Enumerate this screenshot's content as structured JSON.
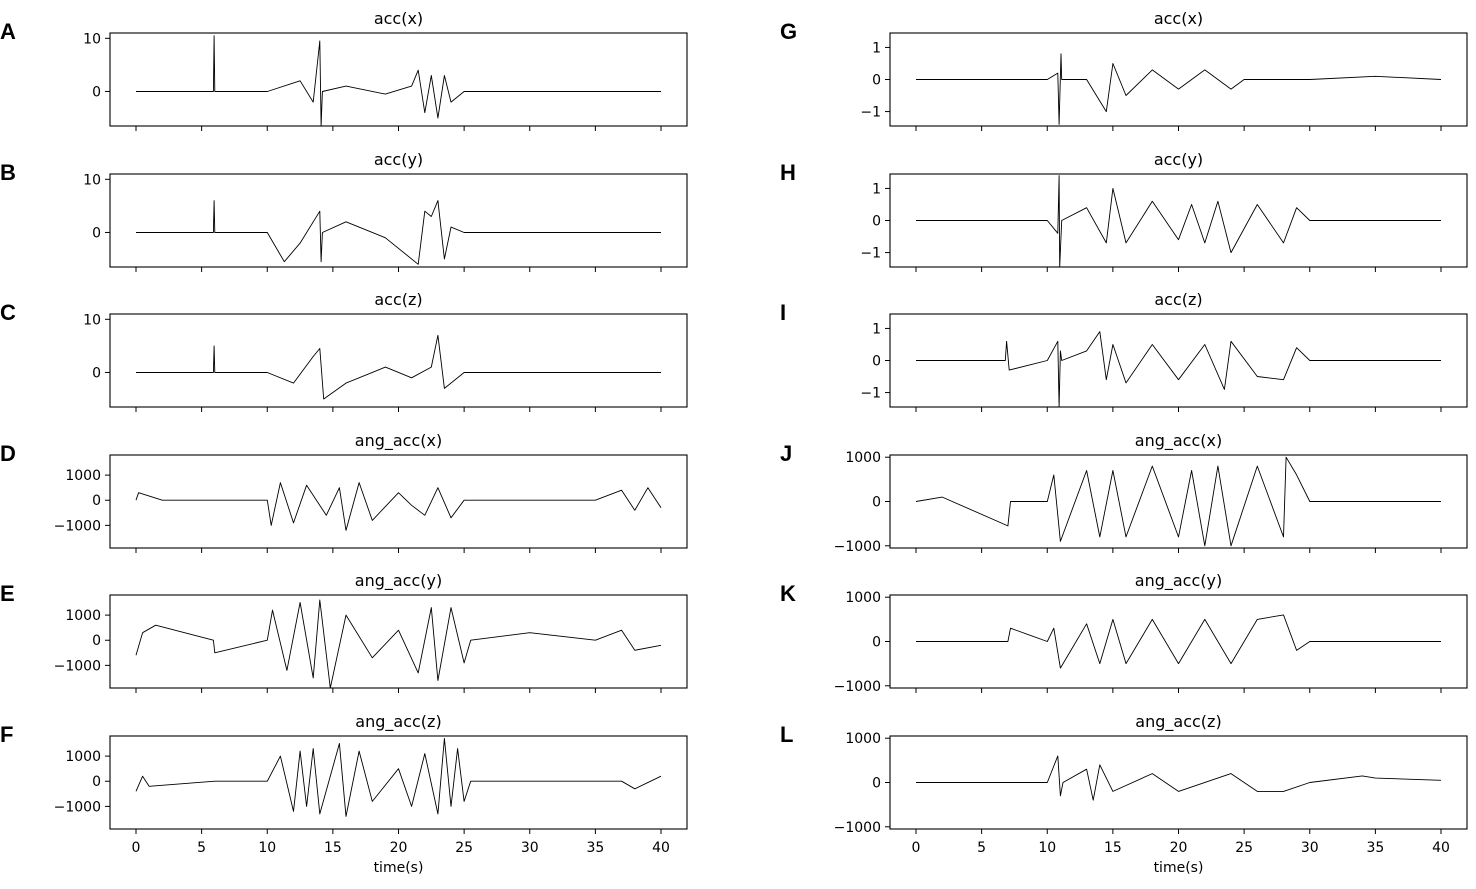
{
  "chart_data": [
    {
      "id": "A",
      "column": "left",
      "type": "line",
      "title": "acc(x)",
      "xlabel": "",
      "ylabel": "",
      "xlim": [
        0,
        40
      ],
      "ylim": [
        -6.5,
        11
      ],
      "yticks": [
        0,
        10
      ],
      "xticks": [],
      "series": [
        {
          "x": [
            0,
            5.9,
            5.95,
            6.0,
            6.05,
            10,
            12.5,
            13.5,
            14.0,
            14.1,
            14.2,
            16,
            19,
            21,
            21.5,
            22,
            22.5,
            23,
            23.5,
            24,
            25,
            25.5,
            30,
            35,
            40
          ],
          "y": [
            0,
            0,
            10.5,
            0,
            0,
            0,
            2,
            -2,
            9.5,
            -6.5,
            0,
            1,
            -0.5,
            1,
            4,
            -4,
            3,
            -5,
            3,
            -2,
            0,
            0,
            0,
            0,
            0
          ]
        }
      ]
    },
    {
      "id": "B",
      "column": "left",
      "type": "line",
      "title": "acc(y)",
      "xlabel": "",
      "ylabel": "",
      "xlim": [
        0,
        40
      ],
      "ylim": [
        -6.5,
        11
      ],
      "yticks": [
        0,
        10
      ],
      "xticks": [],
      "series": [
        {
          "x": [
            0,
            5.9,
            5.95,
            6.0,
            6.05,
            10,
            11.3,
            12.5,
            14.0,
            14.1,
            14.2,
            16,
            19,
            21.5,
            22,
            22.5,
            23,
            23.5,
            24,
            25,
            25.5,
            30,
            35,
            40
          ],
          "y": [
            0,
            0,
            6,
            0,
            0,
            0,
            -5.5,
            -2,
            4,
            -5.5,
            0,
            2,
            -1,
            -6,
            4,
            3,
            6,
            -5,
            1,
            0,
            0,
            0,
            0,
            0
          ]
        }
      ]
    },
    {
      "id": "C",
      "column": "left",
      "type": "line",
      "title": "acc(z)",
      "xlabel": "",
      "ylabel": "",
      "xlim": [
        0,
        40
      ],
      "ylim": [
        -6.5,
        11
      ],
      "yticks": [
        0,
        10
      ],
      "xticks": [],
      "series": [
        {
          "x": [
            0,
            5.9,
            5.95,
            6.0,
            6.05,
            10,
            12,
            13.5,
            14.0,
            14.3,
            16,
            19,
            21,
            22.5,
            23,
            23.5,
            25,
            25.5,
            30,
            35,
            40
          ],
          "y": [
            0,
            0,
            5,
            0,
            0,
            0,
            -2,
            3,
            4.5,
            -5,
            -2,
            1,
            -1,
            1,
            7,
            -3,
            0,
            0,
            0,
            0,
            0
          ]
        }
      ]
    },
    {
      "id": "D",
      "column": "left",
      "type": "line",
      "title": "ang_acc(x)",
      "xlabel": "",
      "ylabel": "",
      "xlim": [
        0,
        40
      ],
      "ylim": [
        -1900,
        1800
      ],
      "yticks": [
        -1000,
        0,
        1000
      ],
      "xticks": [],
      "series": [
        {
          "x": [
            0,
            0.2,
            2,
            10,
            10.3,
            11,
            12,
            13,
            14.5,
            15.5,
            16,
            17,
            18,
            20,
            21,
            22,
            23,
            24,
            25,
            25.5,
            30,
            35,
            37,
            38,
            39,
            40
          ],
          "y": [
            0,
            300,
            0,
            0,
            -1000,
            700,
            -900,
            600,
            -600,
            500,
            -1200,
            700,
            -800,
            300,
            -200,
            -600,
            500,
            -700,
            0,
            0,
            0,
            0,
            400,
            -400,
            500,
            -300
          ]
        }
      ]
    },
    {
      "id": "E",
      "column": "left",
      "type": "line",
      "title": "ang_acc(y)",
      "xlabel": "",
      "ylabel": "",
      "xlim": [
        0,
        40
      ],
      "ylim": [
        -1900,
        1800
      ],
      "yticks": [
        -1000,
        0,
        1000
      ],
      "xticks": [],
      "series": [
        {
          "x": [
            0,
            0.5,
            1.5,
            5.9,
            6.0,
            10,
            10.4,
            11.5,
            12.5,
            13.5,
            14,
            14.8,
            16,
            18,
            20,
            21.5,
            22.5,
            23,
            24,
            25,
            25.5,
            30,
            35,
            37,
            38,
            40
          ],
          "y": [
            -600,
            300,
            600,
            0,
            -500,
            0,
            1200,
            -1200,
            1500,
            -1500,
            1600,
            -1900,
            1000,
            -700,
            400,
            -1300,
            1300,
            -1600,
            1300,
            -900,
            0,
            300,
            0,
            400,
            -400,
            -200
          ]
        }
      ]
    },
    {
      "id": "F",
      "column": "left",
      "type": "line",
      "title": "ang_acc(z)",
      "xlabel": "",
      "ylabel": "",
      "xlim": [
        0,
        40
      ],
      "ylim": [
        -1900,
        1800
      ],
      "yticks": [
        -1000,
        0,
        1000
      ],
      "xticks": [
        0,
        5,
        10,
        15,
        20,
        25,
        30,
        35,
        40
      ],
      "series": [
        {
          "x": [
            0,
            0.5,
            1,
            6,
            10,
            11,
            12,
            12.5,
            13,
            13.5,
            14,
            15.5,
            16,
            17,
            18,
            20,
            21,
            22,
            23,
            23.5,
            24,
            24.5,
            25,
            25.5,
            30,
            35,
            37,
            38,
            40
          ],
          "y": [
            -400,
            200,
            -200,
            0,
            0,
            1000,
            -1200,
            1200,
            -1000,
            1300,
            -1300,
            1500,
            -1400,
            1200,
            -800,
            500,
            -1000,
            1100,
            -1300,
            1700,
            -1000,
            1300,
            -800,
            0,
            0,
            0,
            0,
            -300,
            200
          ]
        }
      ]
    },
    {
      "id": "G",
      "column": "right",
      "type": "line",
      "title": "acc(x)",
      "xlabel": "",
      "ylabel": "",
      "xlim": [
        0,
        40
      ],
      "ylim": [
        -1.45,
        1.45
      ],
      "yticks": [
        -1,
        0,
        1
      ],
      "xticks": [],
      "series": [
        {
          "x": [
            0,
            6.9,
            7,
            10,
            10.8,
            10.9,
            11.05,
            11.1,
            13,
            14.5,
            15,
            16,
            18,
            20,
            22,
            24,
            25,
            30,
            35,
            40
          ],
          "y": [
            0,
            0,
            0,
            0,
            0.2,
            -1.4,
            0.8,
            0,
            0,
            -1,
            0.5,
            -0.5,
            0.3,
            -0.3,
            0.3,
            -0.3,
            0,
            0,
            0.1,
            0
          ]
        }
      ]
    },
    {
      "id": "H",
      "column": "right",
      "type": "line",
      "title": "acc(y)",
      "xlabel": "",
      "ylabel": "",
      "xlim": [
        0,
        40
      ],
      "ylim": [
        -1.45,
        1.45
      ],
      "yticks": [
        -1,
        0,
        1
      ],
      "xticks": [],
      "series": [
        {
          "x": [
            0,
            6,
            10,
            10.8,
            10.9,
            10.95,
            11.1,
            13,
            14.5,
            15,
            16,
            18,
            20,
            21,
            22,
            23,
            24,
            26,
            28,
            29,
            30,
            35,
            40
          ],
          "y": [
            0,
            0,
            0,
            -0.4,
            1.4,
            -1.45,
            0,
            0.4,
            -0.7,
            1,
            -0.7,
            0.6,
            -0.6,
            0.5,
            -0.7,
            0.6,
            -1,
            0.5,
            -0.7,
            0.4,
            0,
            0,
            0
          ]
        }
      ]
    },
    {
      "id": "I",
      "column": "right",
      "type": "line",
      "title": "acc(z)",
      "xlabel": "",
      "ylabel": "",
      "xlim": [
        0,
        40
      ],
      "ylim": [
        -1.45,
        1.45
      ],
      "yticks": [
        -1,
        0,
        1
      ],
      "xticks": [],
      "series": [
        {
          "x": [
            0,
            6.8,
            6.9,
            7.1,
            10,
            10.8,
            10.9,
            11.0,
            11.1,
            13,
            14,
            14.5,
            15,
            16,
            18,
            20,
            22,
            23.5,
            24,
            26,
            28,
            29,
            30,
            35,
            40
          ],
          "y": [
            0,
            0,
            0.6,
            -0.3,
            0,
            0.6,
            -1.45,
            0.3,
            0,
            0.3,
            0.9,
            -0.6,
            0.5,
            -0.7,
            0.5,
            -0.6,
            0.5,
            -0.9,
            0.6,
            -0.5,
            -0.6,
            0.4,
            0,
            0,
            0
          ]
        }
      ]
    },
    {
      "id": "J",
      "column": "right",
      "type": "line",
      "title": "ang_acc(x)",
      "xlabel": "",
      "ylabel": "",
      "xlim": [
        0,
        40
      ],
      "ylim": [
        -1050,
        1050
      ],
      "yticks": [
        -1000,
        0,
        1000
      ],
      "xticks": [],
      "series": [
        {
          "x": [
            0,
            2,
            7,
            7.2,
            10,
            10.5,
            11,
            13,
            14,
            15,
            16,
            18,
            20,
            21,
            22,
            23,
            24,
            26,
            28,
            28.2,
            29,
            30,
            35,
            40
          ],
          "y": [
            0,
            100,
            -550,
            0,
            0,
            600,
            -900,
            700,
            -800,
            700,
            -800,
            800,
            -800,
            700,
            -1000,
            800,
            -1000,
            800,
            -800,
            1000,
            600,
            0,
            0,
            0
          ]
        }
      ]
    },
    {
      "id": "K",
      "column": "right",
      "type": "line",
      "title": "ang_acc(y)",
      "xlabel": "",
      "ylabel": "",
      "xlim": [
        0,
        40
      ],
      "ylim": [
        -1050,
        1050
      ],
      "yticks": [
        -1000,
        0,
        1000
      ],
      "xticks": [],
      "series": [
        {
          "x": [
            0,
            7,
            7.2,
            10,
            10.5,
            11,
            13,
            14,
            15,
            16,
            18,
            20,
            22,
            24,
            26,
            28,
            29,
            30,
            35,
            40
          ],
          "y": [
            0,
            0,
            300,
            0,
            300,
            -600,
            400,
            -500,
            500,
            -500,
            500,
            -500,
            500,
            -500,
            500,
            600,
            -200,
            0,
            0,
            0
          ]
        }
      ]
    },
    {
      "id": "L",
      "column": "right",
      "type": "line",
      "title": "ang_acc(z)",
      "xlabel": "",
      "ylabel": "",
      "xlim": [
        0,
        40
      ],
      "ylim": [
        -1050,
        1050
      ],
      "yticks": [
        -1000,
        0,
        1000
      ],
      "xticks": [
        0,
        5,
        10,
        15,
        20,
        25,
        30,
        35,
        40
      ],
      "series": [
        {
          "x": [
            0,
            10,
            10.8,
            11,
            11.2,
            13,
            13.5,
            14,
            15,
            18,
            20,
            24,
            26,
            28,
            30,
            34,
            35,
            40
          ],
          "y": [
            0,
            0,
            600,
            -300,
            0,
            300,
            -400,
            400,
            -200,
            200,
            -200,
            200,
            -200,
            -200,
            0,
            150,
            100,
            50
          ]
        }
      ]
    }
  ],
  "xlabel_bottom_left": "time(s)",
  "xlabel_bottom_right": "time(s)"
}
